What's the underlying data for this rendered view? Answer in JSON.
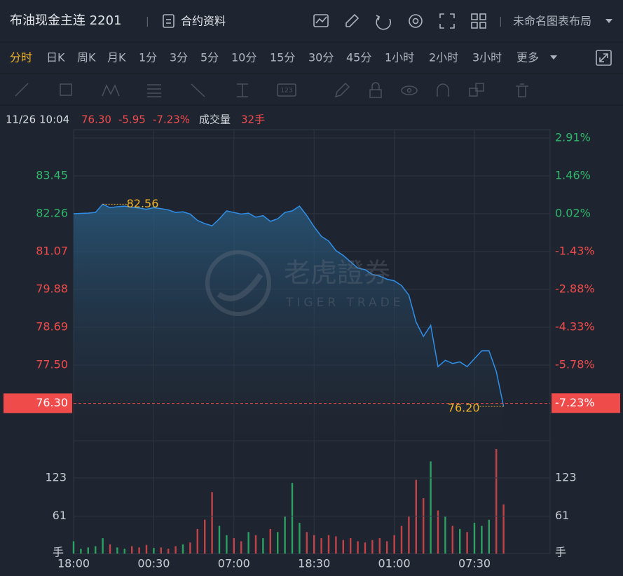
{
  "header": {
    "title": "布油现金主连 2201",
    "contract_info": "合约资料",
    "layout_name": "未命名图表布局"
  },
  "periods": {
    "items": [
      "分时",
      "日K",
      "周K",
      "月K",
      "1分",
      "3分",
      "5分",
      "10分",
      "15分",
      "30分",
      "45分",
      "1小时",
      "2小时",
      "3小时",
      "更多"
    ],
    "active": 0
  },
  "drawing_toolbar": {
    "number_tool": "123"
  },
  "info": {
    "datetime": "11/26 10:04",
    "price": "76.30",
    "change": "-5.95",
    "change_pct": "-7.23%",
    "volume_label": "成交量",
    "volume": "32手"
  },
  "watermark": {
    "brand": "老虎證券",
    "brand_en": "TIGER TRADE"
  },
  "chart_data": [
    {
      "type": "line",
      "categories": [
        "18:00",
        null,
        null,
        null,
        null,
        null,
        null,
        null,
        null,
        null,
        null,
        "00:30",
        null,
        null,
        null,
        null,
        null,
        null,
        null,
        null,
        null,
        null,
        "07:00",
        null,
        null,
        null,
        null,
        null,
        null,
        null,
        null,
        null,
        null,
        "18:30",
        null,
        null,
        null,
        null,
        null,
        null,
        null,
        null,
        null,
        null,
        "01:00",
        null,
        null,
        null,
        null,
        null,
        null,
        null,
        null,
        null,
        null,
        "07:30",
        null,
        null,
        null,
        null
      ],
      "values": [
        82.26,
        82.27,
        82.28,
        82.3,
        82.56,
        82.45,
        82.48,
        82.5,
        82.46,
        82.44,
        82.4,
        82.45,
        82.42,
        82.38,
        82.3,
        82.32,
        82.25,
        82.05,
        81.95,
        81.88,
        82.1,
        82.35,
        82.3,
        82.25,
        82.28,
        82.15,
        82.2,
        82.02,
        82.1,
        82.3,
        82.35,
        82.5,
        82.2,
        81.85,
        81.55,
        81.4,
        81.1,
        80.95,
        80.75,
        80.55,
        80.5,
        80.35,
        80.3,
        80.2,
        80.15,
        80.0,
        79.7,
        78.85,
        78.4,
        78.75,
        77.45,
        77.65,
        77.55,
        77.6,
        77.45,
        77.7,
        77.95,
        77.95,
        77.3,
        76.2
      ],
      "color": "#2f8fe8",
      "ylim": [
        75.12,
        84.64
      ],
      "yticks": [
        83.45,
        82.26,
        81.07,
        79.88,
        78.69,
        {
          "value": 77.5,
          "label": "77.50"
        }
      ],
      "y2lim": [
        -8.67,
        2.91
      ],
      "y2ticks": [
        {
          "value": 2.91,
          "label": "2.91%"
        },
        {
          "value": 1.46,
          "label": "1.46%"
        },
        {
          "value": 0.02,
          "label": "0.02%"
        },
        {
          "value": -1.43,
          "label": "-1.43%"
        },
        {
          "value": -2.88,
          "label": "-2.88%"
        },
        {
          "value": -4.33,
          "label": "-4.33%"
        },
        {
          "value": -5.78,
          "label": "-5.78%"
        }
      ],
      "current": {
        "value": 76.3,
        "label": "76.30"
      },
      "current_pct": {
        "value": -7.23,
        "label": "-7.23%"
      },
      "max_label": 82.56,
      "min_label": {
        "value": 76.2,
        "label": "76.20"
      },
      "up_color": "#2fb66a",
      "down_color": "#f04b4b",
      "grid": true
    },
    {
      "type": "bar",
      "values": [
        20,
        8,
        10,
        12,
        25,
        15,
        10,
        8,
        12,
        10,
        14,
        9,
        10,
        8,
        12,
        15,
        18,
        40,
        55,
        100,
        45,
        30,
        25,
        20,
        35,
        30,
        25,
        40,
        35,
        60,
        115,
        50,
        35,
        30,
        25,
        30,
        28,
        22,
        25,
        20,
        18,
        22,
        25,
        20,
        30,
        45,
        60,
        120,
        90,
        150,
        70,
        60,
        45,
        40,
        35,
        50,
        45,
        55,
        170,
        80
      ],
      "ylim": [
        0,
        171
      ],
      "yticks": [
        61,
        123
      ],
      "unit": "手",
      "up_color": "#2fb66a",
      "down_color": "#e0484b"
    }
  ]
}
